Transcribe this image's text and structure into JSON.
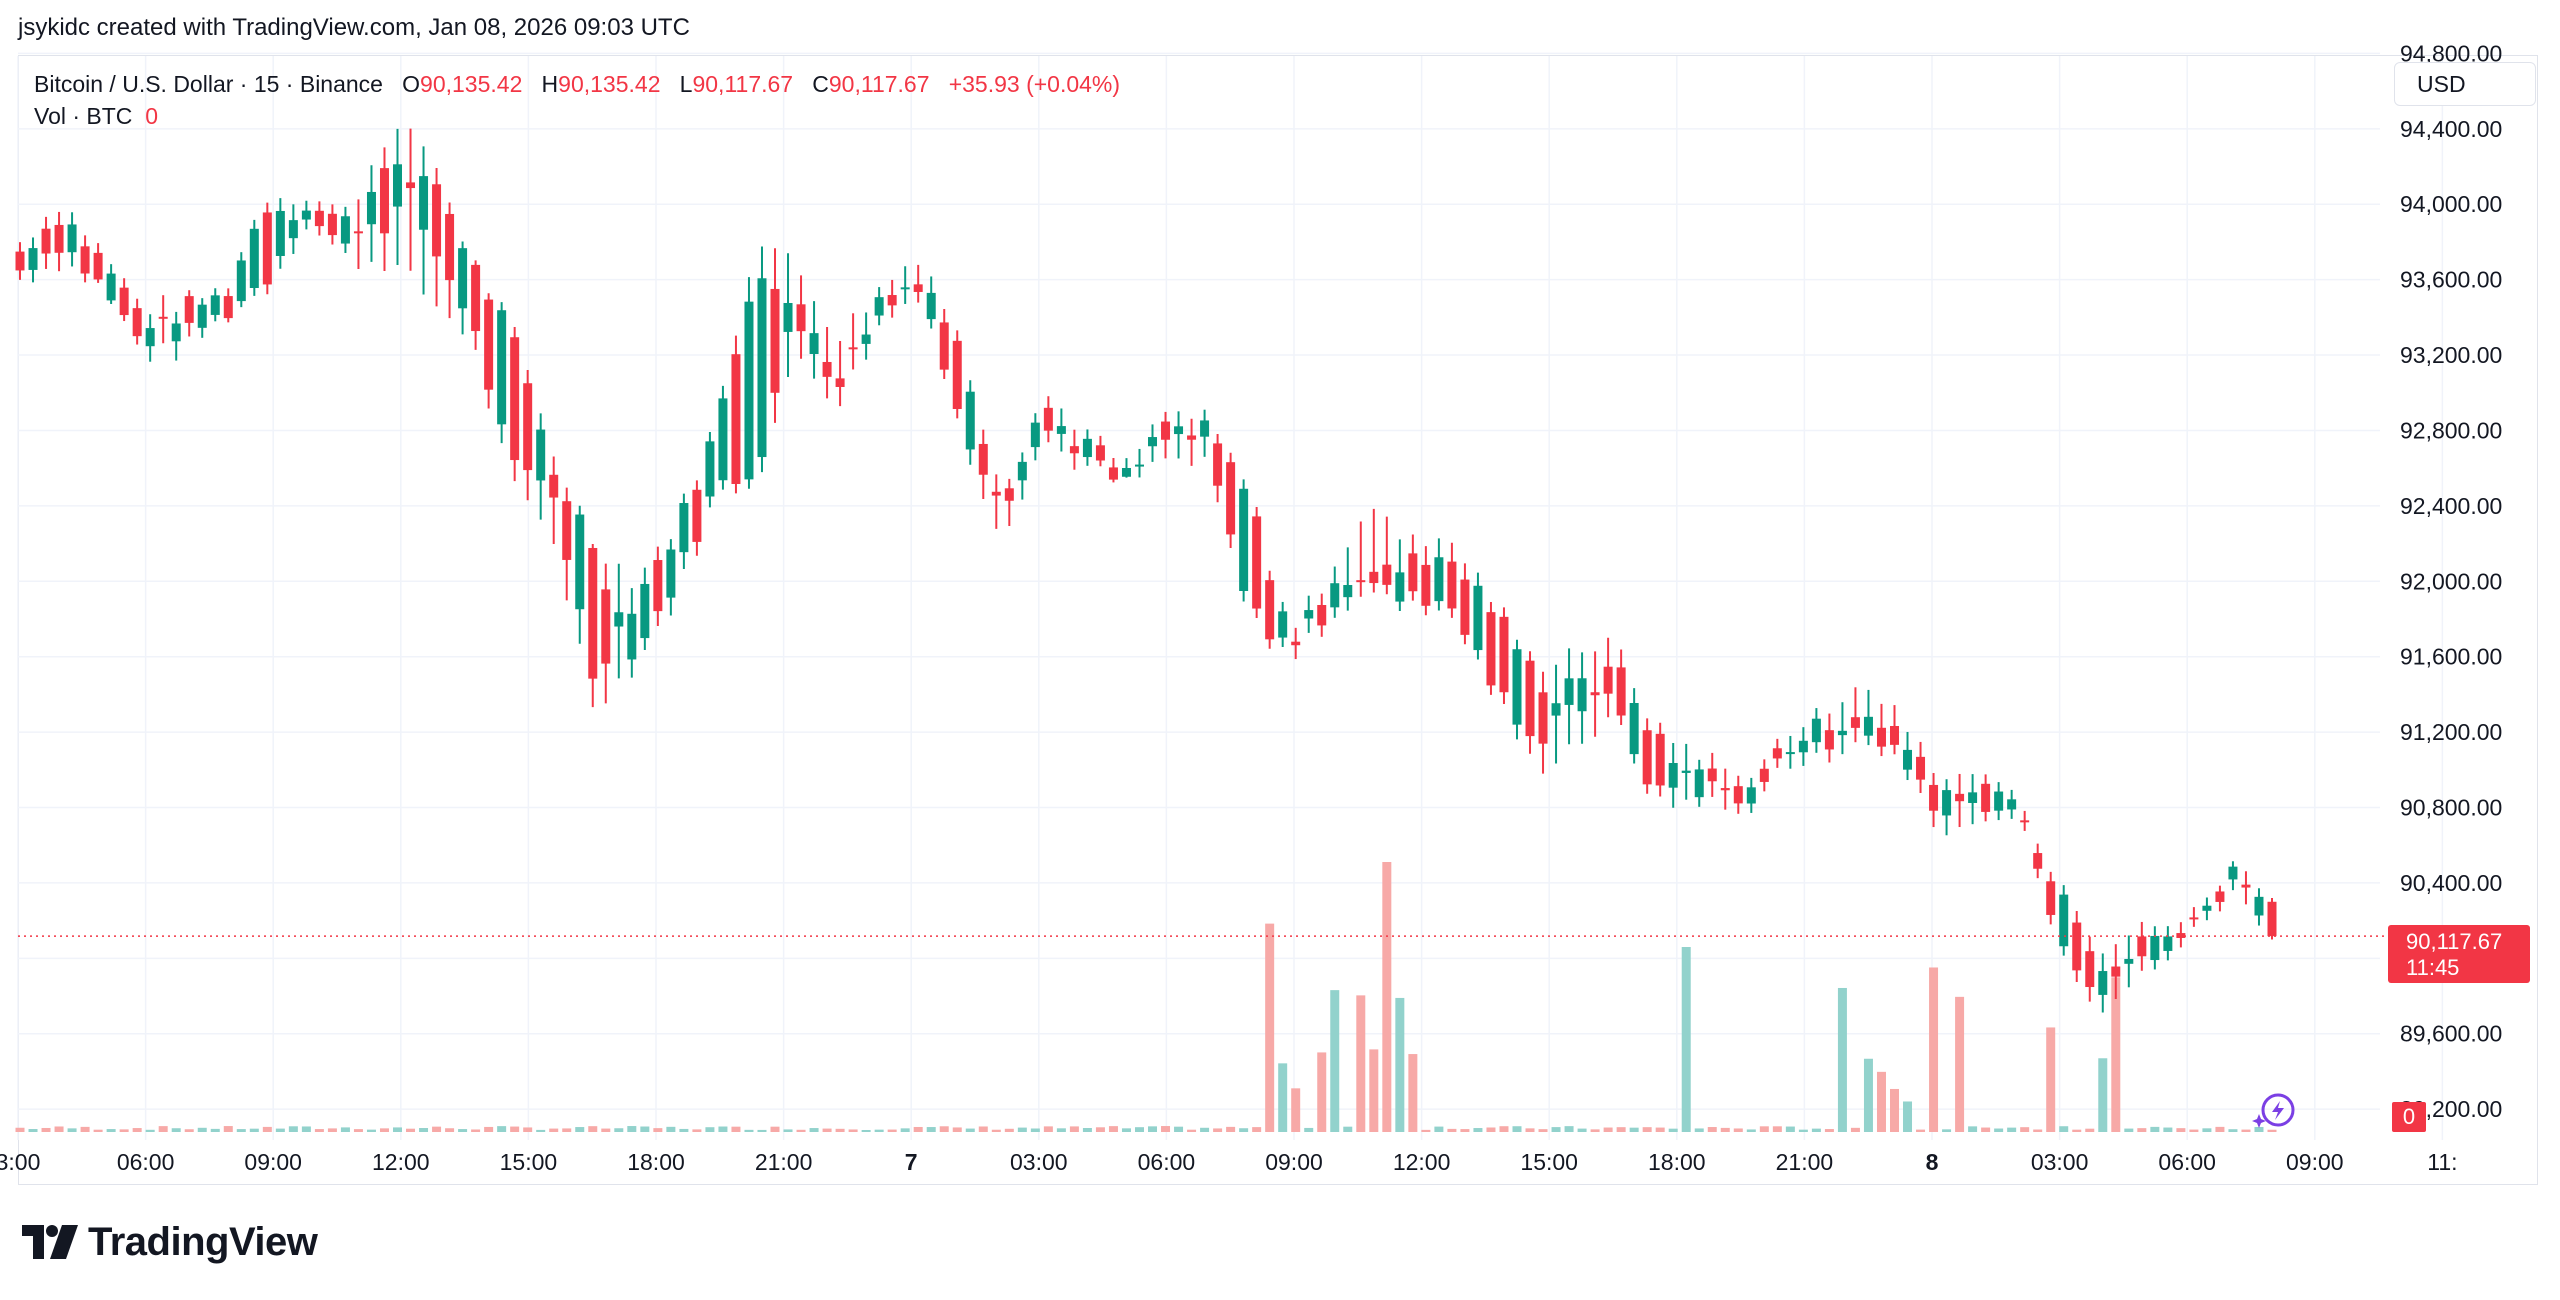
{
  "caption": "jsykidc created with TradingView.com, Jan 08, 2026 09:03 UTC",
  "legend": {
    "symbol": "Bitcoin / U.S. Dollar · 15 · Binance",
    "o_label": "O",
    "o_value": "90,135.42",
    "h_label": "H",
    "h_value": "90,135.42",
    "l_label": "L",
    "l_value": "90,117.67",
    "c_label": "C",
    "c_value": "90,117.67",
    "change": "+35.93 (+0.04%)",
    "vol_label": "Vol · BTC",
    "vol_value": "0"
  },
  "currency_button": "USD",
  "last_price": {
    "price": "90,117.67",
    "countdown": "11:45"
  },
  "volume_tag": "0",
  "brand": {
    "name": "TradingView",
    "icon": "tradingview-logo-icon"
  },
  "colors": {
    "up": "#089981",
    "down": "#f23645",
    "vol_up": "#92d2cc",
    "vol_down": "#f7a9a7",
    "grid": "#f0f3fa"
  },
  "chart_data": {
    "type": "candlestick",
    "interval": "15",
    "y_ticks": [
      "94,800.00",
      "94,400.00",
      "94,000.00",
      "93,600.00",
      "93,200.00",
      "92,800.00",
      "92,400.00",
      "92,000.00",
      "91,600.00",
      "91,200.00",
      "90,800.00",
      "90,400.00",
      "90,000.00",
      "89,600.00",
      "89,200.00"
    ],
    "x_ticks": [
      "3:00",
      "06:00",
      "09:00",
      "12:00",
      "15:00",
      "18:00",
      "21:00",
      "7",
      "03:00",
      "06:00",
      "09:00",
      "12:00",
      "15:00",
      "18:00",
      "21:00",
      "8",
      "03:00",
      "06:00",
      "09:00",
      "11:"
    ],
    "ylim": [
      89100,
      94850
    ],
    "last_close": 90117.67,
    "ohlc_sampled": [
      [
        93750,
        93800,
        93600,
        93650
      ],
      [
        93950,
        94020,
        93700,
        93800
      ],
      [
        93700,
        93750,
        93550,
        93560
      ],
      [
        93400,
        93450,
        93200,
        93250
      ],
      [
        93300,
        93480,
        93220,
        93450
      ],
      [
        93420,
        93550,
        93400,
        93510
      ],
      [
        93600,
        94050,
        93550,
        94000
      ],
      [
        94000,
        94050,
        93900,
        93950
      ],
      [
        93900,
        93950,
        93700,
        93750
      ],
      [
        93900,
        94400,
        93700,
        94300
      ],
      [
        94200,
        94300,
        93500,
        93800
      ],
      [
        93700,
        93720,
        93300,
        93400
      ],
      [
        93300,
        93350,
        92500,
        92600
      ],
      [
        92600,
        92700,
        92250,
        92500
      ],
      [
        92200,
        92220,
        91350,
        91500
      ],
      [
        91600,
        92000,
        91550,
        91900
      ],
      [
        92000,
        92300,
        91900,
        92250
      ],
      [
        92500,
        92850,
        92450,
        92800
      ],
      [
        92600,
        93850,
        92550,
        93700
      ],
      [
        93500,
        93650,
        93200,
        93350
      ],
      [
        93100,
        93300,
        92950,
        93050
      ],
      [
        93400,
        93550,
        93350,
        93500
      ],
      [
        93650,
        93750,
        93550,
        93600
      ],
      [
        93200,
        93250,
        92750,
        92800
      ],
      [
        92400,
        92500,
        92250,
        92450
      ],
      [
        92800,
        93000,
        92750,
        92950
      ],
      [
        92750,
        92800,
        92600,
        92650
      ],
      [
        92550,
        92600,
        92500,
        92500
      ],
      [
        92750,
        92900,
        92650,
        92850
      ],
      [
        92800,
        92850,
        92600,
        92700
      ],
      [
        92450,
        92500,
        91800,
        91850
      ],
      [
        91700,
        91750,
        91600,
        91650
      ],
      [
        91800,
        92000,
        91750,
        91950
      ],
      [
        92100,
        92450,
        92000,
        92050
      ],
      [
        92100,
        92200,
        91850,
        91900
      ],
      [
        92100,
        92200,
        91800,
        91850
      ],
      [
        91850,
        91900,
        91400,
        91450
      ],
      [
        91500,
        91550,
        91000,
        91100
      ],
      [
        91300,
        91650,
        91150,
        91550
      ],
      [
        91550,
        91650,
        91250,
        91300
      ],
      [
        91150,
        91200,
        90800,
        90850
      ],
      [
        90900,
        91100,
        90850,
        91050
      ],
      [
        90900,
        90950,
        90750,
        90800
      ],
      [
        91100,
        91150,
        91000,
        91050
      ],
      [
        91100,
        91300,
        91050,
        91250
      ],
      [
        91300,
        91450,
        91150,
        91200
      ],
      [
        91200,
        91300,
        91050,
        91100
      ],
      [
        90850,
        90900,
        90600,
        90700
      ],
      [
        90800,
        91000,
        90750,
        90950
      ],
      [
        90700,
        90750,
        90650,
        90700
      ],
      [
        90300,
        90350,
        89950,
        90000
      ],
      [
        89900,
        90000,
        89700,
        89800
      ],
      [
        90000,
        90200,
        89950,
        90150
      ],
      [
        90150,
        90200,
        90100,
        90140
      ],
      [
        90400,
        90500,
        90350,
        90480
      ],
      [
        90300,
        90320,
        90100,
        90117.67
      ]
    ]
  }
}
